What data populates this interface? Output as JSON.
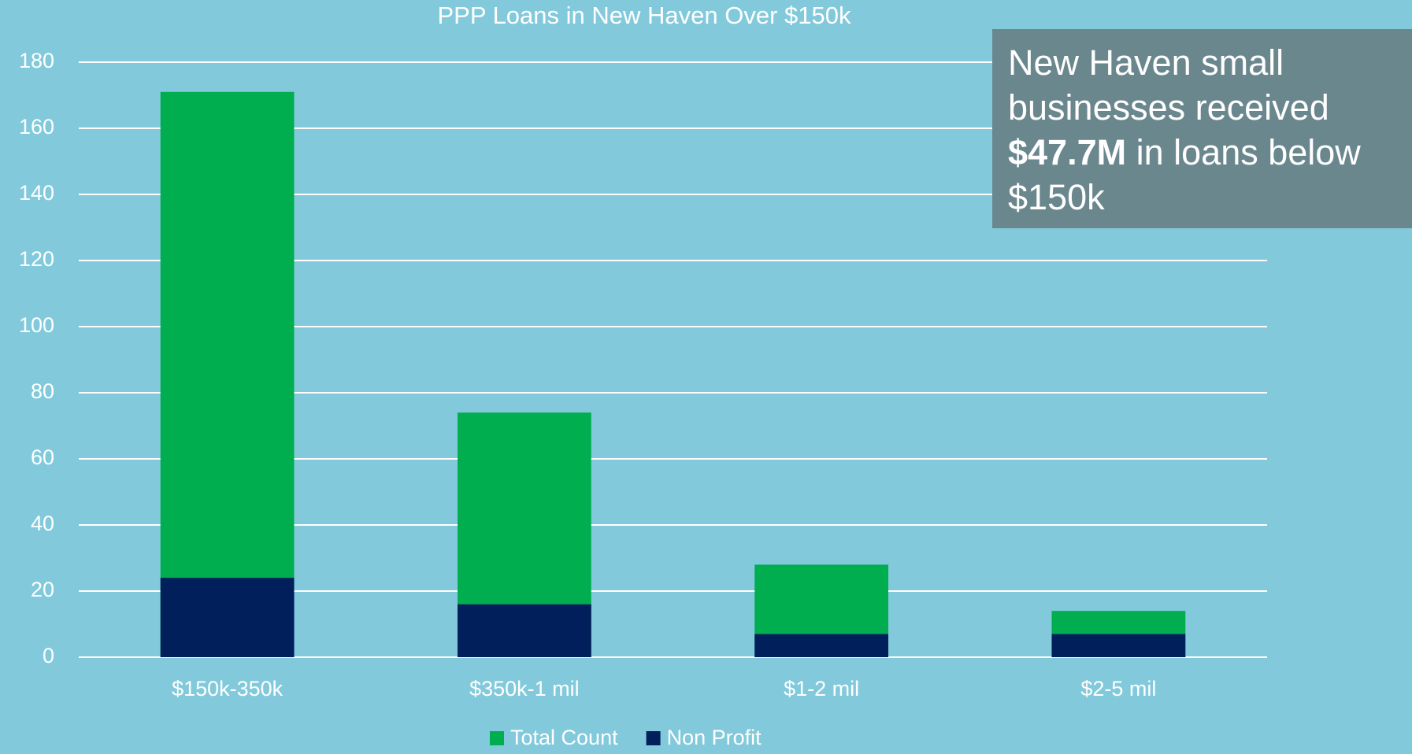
{
  "chart_data": {
    "type": "bar",
    "title": "PPP Loans in New Haven Over $150k",
    "categories": [
      "$150k-350k",
      "$350k-1 mil",
      "$1-2 mil",
      "$2-5 mil"
    ],
    "series": [
      {
        "name": "Total Count",
        "color": "#00ae4f",
        "values": [
          171,
          74,
          28,
          14
        ]
      },
      {
        "name": "Non Profit",
        "color": "#001f5b",
        "values": [
          24,
          16,
          7,
          7
        ]
      }
    ],
    "ylim": [
      0,
      180
    ],
    "yticks": [
      0,
      20,
      40,
      60,
      80,
      100,
      120,
      140,
      160,
      180
    ],
    "grid": true,
    "legend": "bottom",
    "annotation": {
      "before": "New Haven small businesses received",
      "highlight": "$47.7M",
      "after": "in loans below $150k"
    }
  }
}
